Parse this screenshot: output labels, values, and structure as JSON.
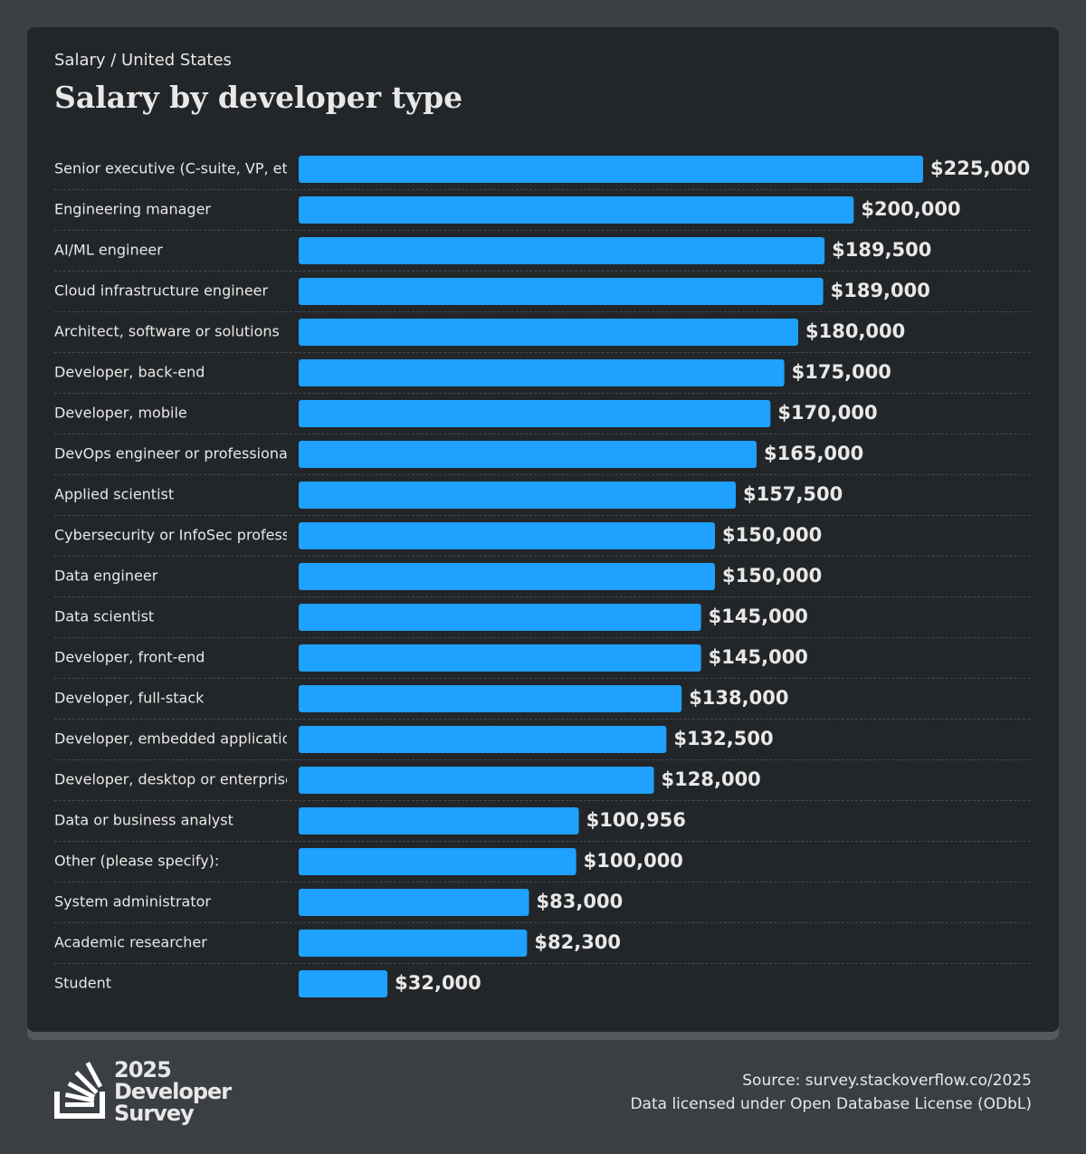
{
  "header": {
    "subtitle": "Salary / United States"
  },
  "chart_data": {
    "type": "bar",
    "orientation": "horizontal",
    "title": "Salary by developer type",
    "categories": [
      "Senior executive (C-suite, VP, etc.)",
      "Engineering manager",
      "AI/ML engineer",
      "Cloud infrastructure engineer",
      "Architect, software or solutions",
      "Developer, back-end",
      "Developer, mobile",
      "DevOps engineer or professional",
      "Applied scientist",
      "Cybersecurity or InfoSec professional",
      "Data engineer",
      "Data scientist",
      "Developer, front-end",
      "Developer, full-stack",
      "Developer, embedded applications or devices",
      "Developer, desktop or enterprise applications",
      "Data or business analyst",
      "Other (please specify):",
      "System administrator",
      "Academic researcher",
      "Student"
    ],
    "values": [
      225000,
      200000,
      189500,
      189000,
      180000,
      175000,
      170000,
      165000,
      157500,
      150000,
      150000,
      145000,
      145000,
      138000,
      132500,
      128000,
      100956,
      100000,
      83000,
      82300,
      32000
    ],
    "value_labels": [
      "$225,000",
      "$200,000",
      "$189,500",
      "$189,000",
      "$180,000",
      "$175,000",
      "$170,000",
      "$165,000",
      "$157,500",
      "$150,000",
      "$150,000",
      "$145,000",
      "$145,000",
      "$138,000",
      "$132,500",
      "$128,000",
      "$100,956",
      "$100,000",
      "$83,000",
      "$82,300",
      "$32,000"
    ],
    "color": "#1ea1ff"
  },
  "footer": {
    "logo": [
      "2025",
      "Developer",
      "Survey"
    ],
    "source": "Source: survey.stackoverflow.co/2025",
    "license": "Data licensed under Open Database License (ODbL)"
  }
}
